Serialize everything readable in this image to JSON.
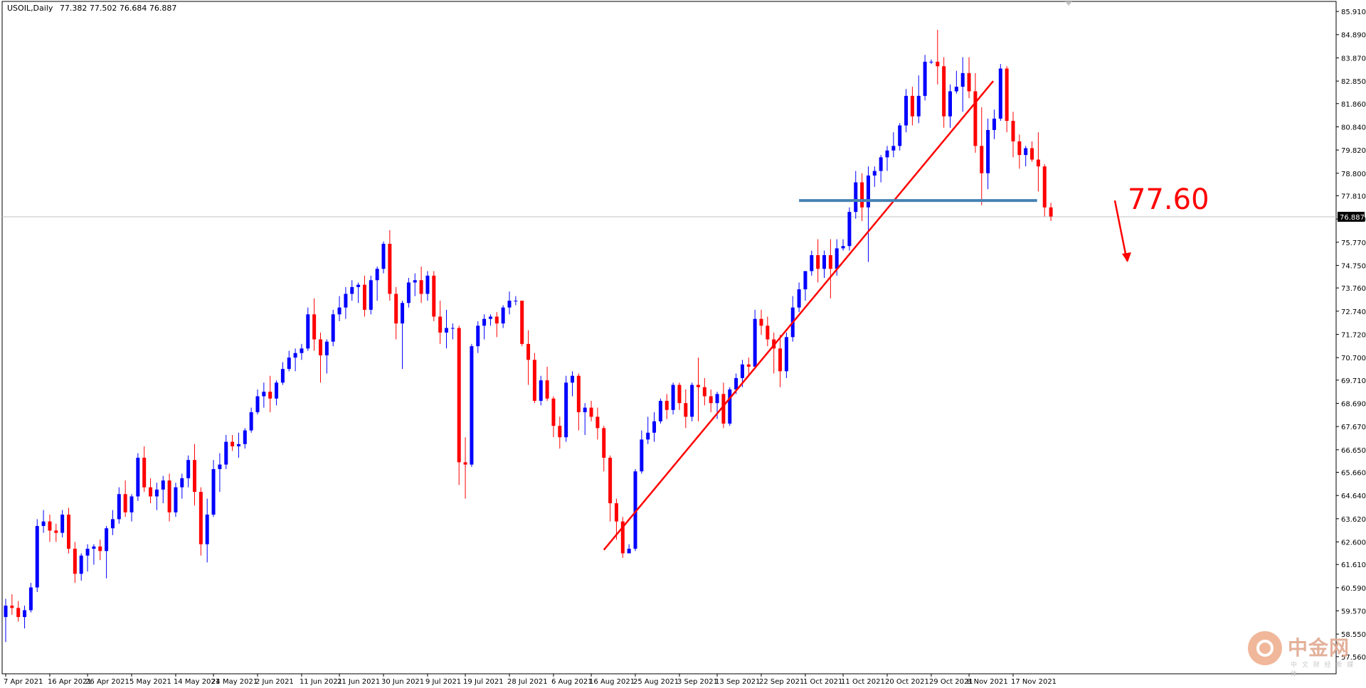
{
  "header": {
    "symbol": "USOIL,Daily",
    "ohlc": "77.382 77.502 76.684 76.887"
  },
  "annotation": {
    "level_label": "77.60",
    "level_value": 77.6
  },
  "watermark": {
    "title": "中金网",
    "sub": "中 文 财 经 新 媒 体"
  },
  "current_price": {
    "value": 76.887,
    "label": "76.887"
  },
  "colors": {
    "bull": "#0000ff",
    "bear": "#ff0000",
    "trend": "#ff0000",
    "level": "#4682b4",
    "text": "#000000"
  },
  "chart_data": {
    "type": "candlestick",
    "title": "",
    "xlabel": "",
    "ylabel": "",
    "ylim": [
      56.9,
      86.1
    ],
    "y_ticks": [
      "85.910",
      "84.890",
      "83.870",
      "82.850",
      "81.860",
      "80.840",
      "79.820",
      "78.800",
      "77.810",
      "76.790",
      "75.770",
      "74.750",
      "73.760",
      "72.740",
      "71.720",
      "70.700",
      "69.710",
      "68.690",
      "67.670",
      "66.650",
      "65.660",
      "64.640",
      "63.620",
      "62.600",
      "61.610",
      "60.590",
      "59.570",
      "58.550",
      "57.560"
    ],
    "x_ticks": [
      {
        "label": "7 Apr 2021",
        "idx": 0
      },
      {
        "label": "16 Apr 2021",
        "idx": 7
      },
      {
        "label": "26 Apr 2021",
        "idx": 13
      },
      {
        "label": "5 May 2021",
        "idx": 20
      },
      {
        "label": "14 May 2021",
        "idx": 27
      },
      {
        "label": "24 May 2021",
        "idx": 33
      },
      {
        "label": "2 Jun 2021",
        "idx": 40
      },
      {
        "label": "11 Jun 2021",
        "idx": 47
      },
      {
        "label": "21 Jun 2021",
        "idx": 53
      },
      {
        "label": "30 Jun 2021",
        "idx": 60
      },
      {
        "label": "9 Jul 2021",
        "idx": 67
      },
      {
        "label": "19 Jul 2021",
        "idx": 73
      },
      {
        "label": "28 Jul 2021",
        "idx": 80
      },
      {
        "label": "6 Aug 2021",
        "idx": 87
      },
      {
        "label": "16 Aug 2021",
        "idx": 93
      },
      {
        "label": "25 Aug 2021",
        "idx": 100
      },
      {
        "label": "3 Sep 2021",
        "idx": 107
      },
      {
        "label": "13 Sep 2021",
        "idx": 113
      },
      {
        "label": "22 Sep 2021",
        "idx": 120
      },
      {
        "label": "1 Oct 2021",
        "idx": 127
      },
      {
        "label": "11 Oct 2021",
        "idx": 133
      },
      {
        "label": "20 Oct 2021",
        "idx": 140
      },
      {
        "label": "29 Oct 2021",
        "idx": 147
      },
      {
        "label": "8 Nov 2021",
        "idx": 153
      },
      {
        "label": "17 Nov 2021",
        "idx": 160
      }
    ],
    "candles": [
      [
        59.3,
        60.1,
        58.2,
        59.8
      ],
      [
        59.8,
        60.3,
        59.4,
        59.7
      ],
      [
        59.7,
        60.0,
        59.1,
        59.3
      ],
      [
        59.3,
        59.8,
        58.8,
        59.6
      ],
      [
        59.6,
        60.8,
        59.5,
        60.6
      ],
      [
        60.6,
        63.6,
        60.4,
        63.3
      ],
      [
        63.3,
        64.0,
        63.0,
        63.5
      ],
      [
        63.5,
        63.8,
        62.6,
        63.1
      ],
      [
        63.1,
        63.4,
        62.6,
        63.0
      ],
      [
        63.0,
        64.0,
        62.8,
        63.8
      ],
      [
        63.8,
        64.1,
        62.1,
        62.3
      ],
      [
        62.3,
        62.6,
        60.8,
        61.2
      ],
      [
        61.2,
        62.1,
        60.9,
        62.0
      ],
      [
        62.0,
        62.5,
        61.3,
        62.3
      ],
      [
        62.3,
        62.5,
        61.6,
        62.4
      ],
      [
        62.4,
        62.7,
        61.8,
        62.2
      ],
      [
        62.2,
        63.3,
        61.0,
        63.2
      ],
      [
        63.2,
        64.0,
        62.9,
        63.6
      ],
      [
        63.6,
        65.0,
        63.4,
        64.7
      ],
      [
        64.7,
        65.3,
        63.7,
        63.9
      ],
      [
        63.9,
        64.7,
        63.5,
        64.6
      ],
      [
        64.6,
        66.5,
        64.4,
        66.3
      ],
      [
        66.3,
        66.8,
        64.8,
        65.0
      ],
      [
        65.0,
        65.4,
        64.3,
        64.6
      ],
      [
        64.6,
        65.2,
        64.0,
        64.9
      ],
      [
        64.9,
        65.5,
        64.3,
        65.3
      ],
      [
        65.3,
        65.6,
        63.5,
        63.9
      ],
      [
        63.9,
        65.2,
        63.7,
        65.0
      ],
      [
        65.0,
        65.6,
        64.5,
        65.4
      ],
      [
        65.4,
        66.4,
        65.0,
        66.2
      ],
      [
        66.2,
        66.9,
        64.2,
        64.8
      ],
      [
        64.8,
        65.0,
        62.0,
        62.5
      ],
      [
        62.5,
        64.5,
        61.7,
        63.8
      ],
      [
        63.8,
        66.2,
        63.7,
        65.8
      ],
      [
        65.8,
        66.5,
        64.8,
        66.0
      ],
      [
        66.0,
        67.3,
        65.8,
        67.0
      ],
      [
        67.0,
        67.3,
        66.6,
        66.8
      ],
      [
        66.8,
        67.4,
        66.3,
        66.9
      ],
      [
        66.9,
        67.6,
        66.7,
        67.5
      ],
      [
        67.5,
        68.5,
        67.4,
        68.3
      ],
      [
        68.3,
        69.3,
        68.2,
        69.0
      ],
      [
        69.0,
        69.6,
        68.5,
        69.2
      ],
      [
        69.2,
        69.9,
        68.3,
        68.9
      ],
      [
        68.9,
        69.7,
        68.6,
        69.6
      ],
      [
        69.6,
        70.5,
        69.5,
        70.2
      ],
      [
        70.2,
        71.0,
        70.1,
        70.7
      ],
      [
        70.7,
        71.1,
        70.1,
        70.9
      ],
      [
        70.9,
        71.3,
        70.6,
        71.1
      ],
      [
        71.1,
        72.9,
        71.0,
        72.6
      ],
      [
        72.6,
        73.3,
        71.0,
        71.5
      ],
      [
        71.5,
        71.8,
        69.6,
        70.8
      ],
      [
        70.8,
        71.5,
        70.0,
        71.4
      ],
      [
        71.4,
        72.8,
        71.2,
        72.6
      ],
      [
        72.6,
        73.4,
        72.3,
        72.9
      ],
      [
        72.9,
        73.8,
        72.4,
        73.5
      ],
      [
        73.5,
        74.1,
        73.2,
        73.8
      ],
      [
        73.8,
        74.0,
        73.1,
        73.9
      ],
      [
        73.9,
        74.3,
        72.5,
        72.8
      ],
      [
        72.8,
        74.3,
        72.6,
        74.1
      ],
      [
        74.1,
        74.7,
        73.2,
        74.6
      ],
      [
        74.6,
        75.8,
        74.4,
        75.7
      ],
      [
        75.7,
        76.3,
        73.2,
        73.5
      ],
      [
        73.5,
        73.8,
        71.5,
        72.2
      ],
      [
        72.2,
        73.2,
        70.2,
        73.1
      ],
      [
        73.1,
        74.2,
        72.9,
        74.0
      ],
      [
        74.0,
        74.4,
        73.4,
        74.1
      ],
      [
        74.1,
        74.7,
        73.1,
        73.5
      ],
      [
        73.5,
        74.5,
        73.2,
        74.3
      ],
      [
        74.3,
        74.5,
        72.3,
        72.5
      ],
      [
        72.5,
        73.2,
        71.3,
        71.8
      ],
      [
        71.8,
        72.8,
        71.1,
        72.0
      ],
      [
        72.0,
        72.2,
        71.5,
        72.0
      ],
      [
        72.0,
        72.1,
        65.1,
        66.1
      ],
      [
        66.1,
        67.2,
        64.5,
        66.0
      ],
      [
        66.0,
        71.3,
        65.9,
        71.2
      ],
      [
        71.2,
        72.3,
        70.9,
        72.1
      ],
      [
        72.1,
        72.6,
        71.5,
        72.4
      ],
      [
        72.4,
        72.6,
        72.1,
        72.5
      ],
      [
        72.5,
        72.7,
        71.6,
        72.2
      ],
      [
        72.2,
        73.0,
        72.0,
        72.9
      ],
      [
        72.9,
        73.6,
        72.6,
        73.2
      ],
      [
        73.2,
        73.4,
        73.0,
        73.2
      ],
      [
        73.2,
        73.2,
        71.2,
        71.3
      ],
      [
        71.3,
        71.9,
        69.5,
        70.6
      ],
      [
        70.6,
        70.9,
        68.7,
        68.8
      ],
      [
        68.8,
        69.9,
        68.6,
        69.7
      ],
      [
        69.7,
        70.3,
        68.8,
        68.9
      ],
      [
        68.9,
        69.0,
        67.2,
        67.7
      ],
      [
        67.7,
        68.1,
        66.7,
        67.2
      ],
      [
        67.2,
        69.9,
        67.0,
        69.6
      ],
      [
        69.6,
        70.1,
        69.0,
        69.9
      ],
      [
        69.9,
        70.0,
        67.5,
        68.3
      ],
      [
        68.3,
        68.7,
        67.3,
        68.5
      ],
      [
        68.5,
        68.8,
        67.9,
        68.1
      ],
      [
        68.1,
        68.5,
        67.1,
        67.6
      ],
      [
        67.6,
        67.7,
        65.7,
        66.3
      ],
      [
        66.3,
        66.4,
        63.5,
        64.3
      ],
      [
        64.3,
        64.5,
        62.7,
        63.5
      ],
      [
        63.5,
        63.7,
        61.9,
        62.1
      ],
      [
        62.1,
        62.5,
        62.1,
        62.3
      ],
      [
        62.3,
        65.8,
        62.2,
        65.7
      ],
      [
        65.7,
        67.5,
        65.6,
        67.1
      ],
      [
        67.1,
        68.1,
        66.9,
        67.4
      ],
      [
        67.4,
        68.3,
        67.0,
        67.9
      ],
      [
        67.9,
        68.9,
        67.8,
        68.8
      ],
      [
        68.8,
        69.1,
        68.0,
        68.4
      ],
      [
        68.4,
        69.6,
        68.2,
        69.5
      ],
      [
        69.5,
        69.6,
        68.4,
        68.7
      ],
      [
        68.7,
        69.3,
        67.6,
        68.1
      ],
      [
        68.1,
        69.6,
        67.9,
        69.5
      ],
      [
        69.5,
        70.7,
        67.9,
        69.4
      ],
      [
        69.4,
        69.8,
        68.6,
        69.0
      ],
      [
        69.0,
        69.3,
        68.3,
        68.7
      ],
      [
        68.7,
        69.2,
        68.0,
        69.1
      ],
      [
        69.1,
        69.6,
        67.6,
        67.8
      ],
      [
        67.8,
        69.4,
        67.7,
        69.3
      ],
      [
        69.3,
        70.0,
        69.1,
        69.8
      ],
      [
        69.8,
        70.6,
        69.4,
        70.4
      ],
      [
        70.4,
        70.7,
        69.9,
        70.3
      ],
      [
        70.3,
        72.8,
        70.2,
        72.4
      ],
      [
        72.4,
        72.8,
        71.7,
        72.1
      ],
      [
        72.1,
        72.5,
        71.2,
        71.5
      ],
      [
        71.5,
        71.8,
        70.0,
        71.1
      ],
      [
        71.1,
        71.7,
        69.4,
        70.1
      ],
      [
        70.1,
        71.8,
        69.8,
        71.6
      ],
      [
        71.6,
        73.4,
        71.4,
        72.9
      ],
      [
        72.9,
        74.0,
        72.7,
        73.7
      ],
      [
        73.7,
        74.5,
        73.2,
        74.5
      ],
      [
        74.5,
        75.4,
        74.3,
        75.2
      ],
      [
        75.2,
        75.9,
        74.0,
        74.6
      ],
      [
        74.6,
        75.4,
        74.2,
        75.2
      ],
      [
        75.2,
        75.9,
        73.3,
        74.6
      ],
      [
        74.6,
        75.9,
        74.3,
        75.5
      ],
      [
        75.5,
        75.9,
        75.4,
        75.6
      ],
      [
        75.6,
        77.3,
        75.4,
        77.1
      ],
      [
        77.1,
        78.9,
        76.8,
        78.4
      ],
      [
        78.4,
        78.8,
        76.7,
        77.3
      ],
      [
        77.3,
        79.1,
        74.9,
        78.7
      ],
      [
        78.7,
        79.1,
        78.2,
        78.9
      ],
      [
        78.9,
        79.6,
        78.4,
        79.5
      ],
      [
        79.5,
        80.0,
        78.9,
        79.8
      ],
      [
        79.8,
        80.6,
        79.5,
        80.0
      ],
      [
        80.0,
        81.0,
        79.8,
        80.9
      ],
      [
        80.9,
        82.5,
        80.6,
        82.2
      ],
      [
        82.2,
        82.6,
        80.9,
        81.3
      ],
      [
        81.3,
        83.1,
        81.0,
        82.2
      ],
      [
        82.2,
        84.0,
        82.0,
        83.7
      ],
      [
        83.7,
        83.8,
        83.6,
        83.7
      ],
      [
        83.7,
        85.1,
        82.7,
        83.5
      ],
      [
        83.5,
        83.9,
        80.8,
        81.3
      ],
      [
        81.3,
        82.7,
        80.8,
        82.4
      ],
      [
        82.4,
        83.3,
        82.3,
        82.6
      ],
      [
        82.6,
        83.9,
        81.5,
        83.2
      ],
      [
        83.2,
        83.9,
        82.1,
        82.4
      ],
      [
        82.4,
        83.2,
        79.7,
        80.0
      ],
      [
        80.0,
        81.7,
        77.4,
        78.8
      ],
      [
        78.8,
        81.2,
        78.1,
        80.7
      ],
      [
        80.7,
        81.6,
        80.3,
        81.2
      ],
      [
        81.2,
        83.6,
        81.1,
        83.4
      ],
      [
        83.4,
        83.5,
        80.6,
        81.1
      ],
      [
        81.1,
        81.5,
        79.5,
        80.2
      ],
      [
        80.2,
        80.5,
        79.0,
        79.6
      ],
      [
        79.6,
        80.0,
        79.1,
        79.9
      ],
      [
        79.9,
        80.2,
        79.3,
        79.4
      ],
      [
        79.4,
        80.6,
        78.0,
        79.1
      ],
      [
        79.1,
        79.2,
        76.9,
        77.3
      ],
      [
        77.3,
        77.5,
        76.7,
        76.9
      ]
    ]
  }
}
